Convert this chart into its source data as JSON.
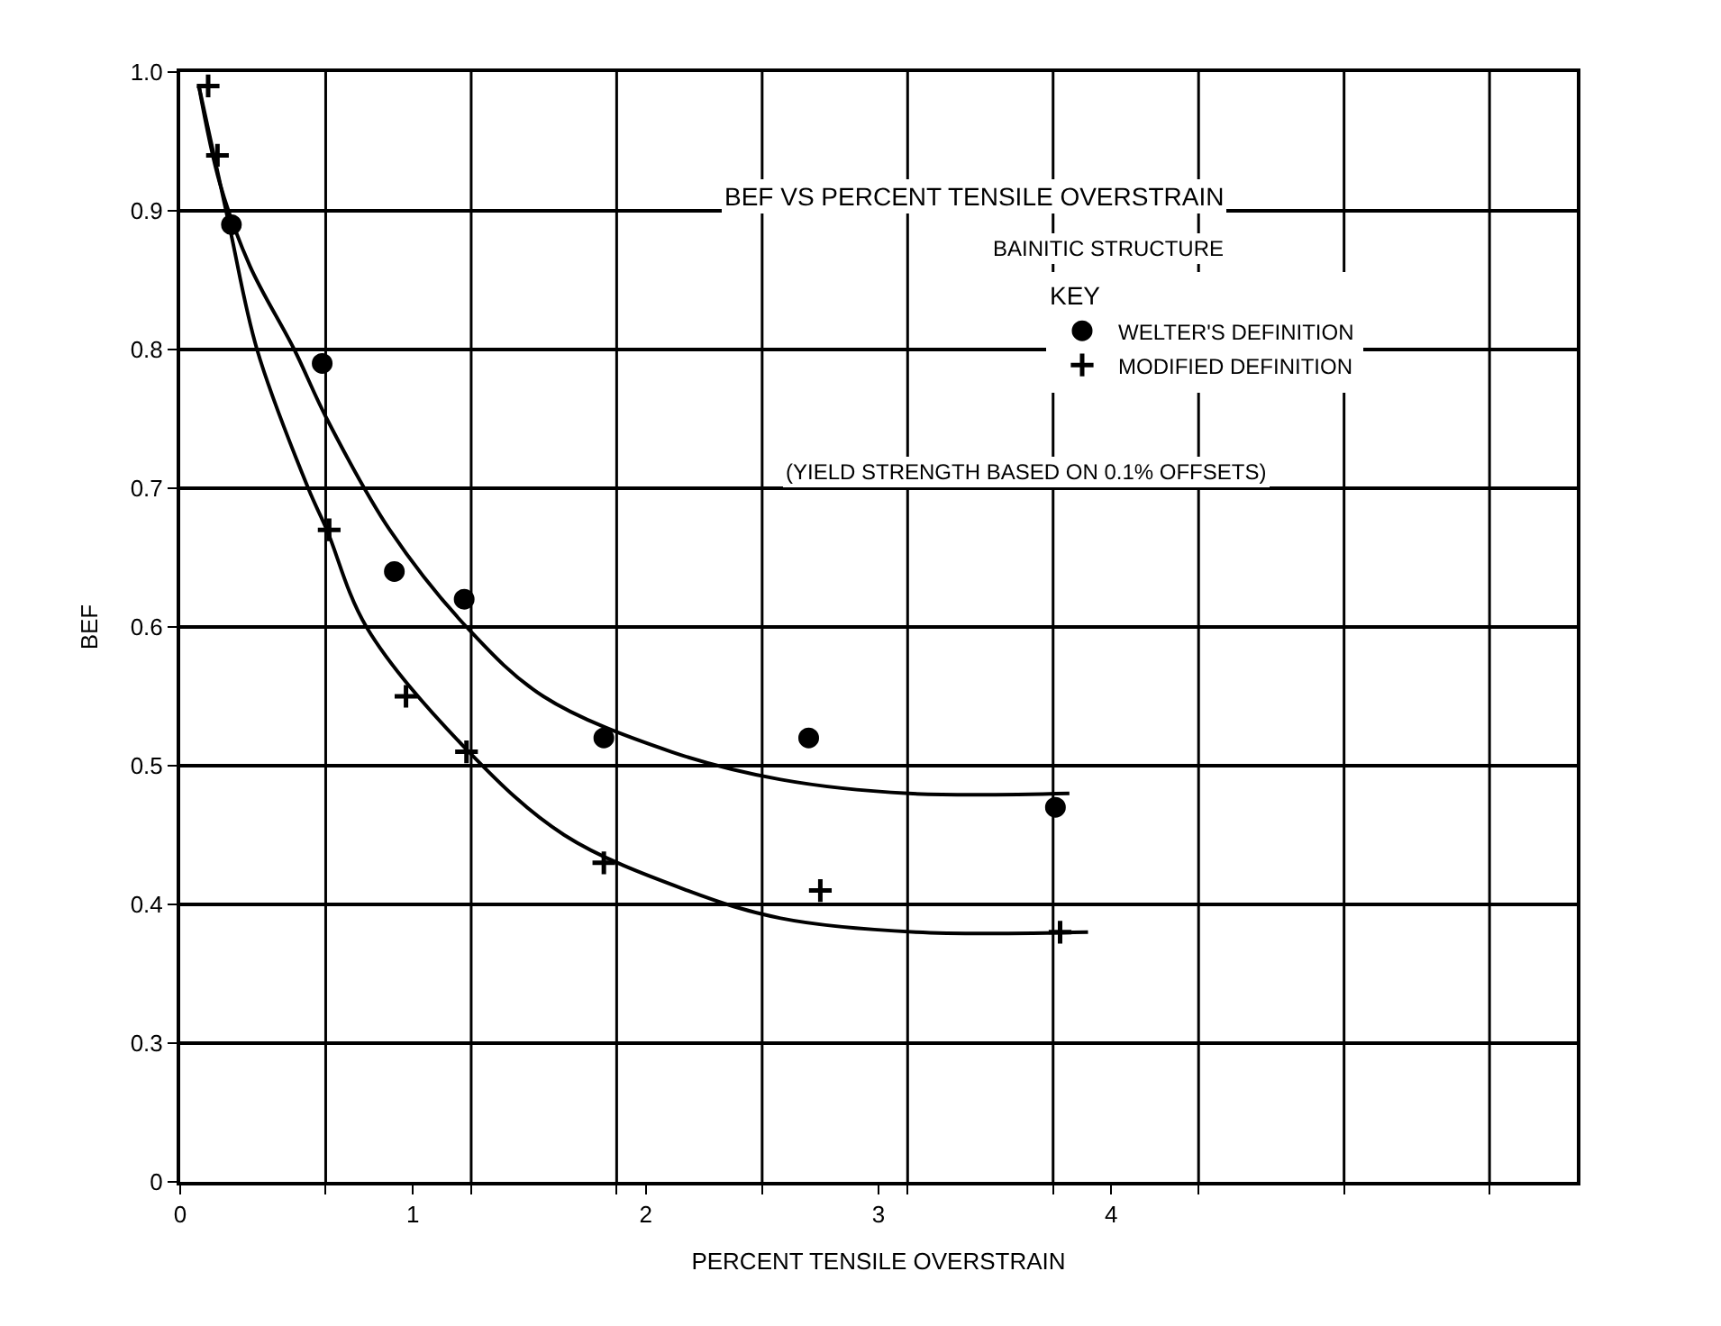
{
  "chart_data": {
    "type": "scatter",
    "title": "BEF VS PERCENT TENSILE OVERSTRAIN",
    "subtitle": "BAINITIC STRUCTURE",
    "xlabel": "PERCENT TENSILE OVERSTRAIN",
    "ylabel": "BEF",
    "legend_title": "KEY",
    "legend": "top right",
    "grid": true,
    "annotations": [
      "(YIELD STRENGTH BASED ON 0.1% OFFSETS)"
    ],
    "xlim": [
      0,
      6.0
    ],
    "ylim": [
      0.2,
      1.0
    ],
    "xticks": [
      0,
      1,
      2,
      3,
      4,
      {
        "value": 0.625,
        "label": null
      },
      {
        "value": 1.25,
        "label": null
      },
      {
        "value": 1.875,
        "label": null
      },
      {
        "value": 2.5,
        "label": null
      },
      {
        "value": 3.125,
        "label": null
      },
      {
        "value": 3.75,
        "label": null
      },
      {
        "value": 4.375,
        "label": null
      },
      {
        "value": 5.0,
        "label": null
      },
      {
        "value": 5.625,
        "label": null
      }
    ],
    "yticks": [
      {
        "value": 0.2,
        "label": "0"
      },
      0.3,
      0.4,
      0.5,
      0.6,
      0.7,
      0.8,
      0.9,
      {
        "value": 1.0,
        "label": "1.0"
      }
    ],
    "series": [
      {
        "name": "WELTER'S DEFINITION",
        "marker": "circle",
        "color": "#000000",
        "x": [
          0.22,
          0.61,
          0.92,
          1.22,
          1.82,
          2.7,
          3.76
        ],
        "values": [
          0.89,
          0.79,
          0.64,
          0.62,
          0.52,
          0.52,
          0.47
        ]
      },
      {
        "name": "MODIFIED DEFINITION",
        "marker": "cross",
        "color": "#000000",
        "x": [
          0.12,
          0.16,
          0.64,
          0.97,
          1.23,
          1.82,
          2.75,
          3.78
        ],
        "values": [
          0.99,
          0.94,
          0.67,
          0.55,
          0.51,
          0.43,
          0.41,
          0.38
        ]
      },
      {
        "type": "line",
        "color": "#000000",
        "line_style": "solid",
        "x": [
          0.08,
          0.17,
          0.3,
          0.49,
          0.63,
          0.9,
          1.23,
          1.56,
          2.11,
          2.58,
          3.13,
          3.82
        ],
        "values": [
          0.99,
          0.92,
          0.86,
          0.8,
          0.75,
          0.67,
          0.6,
          0.55,
          0.51,
          0.49,
          0.48,
          0.48
        ]
      },
      {
        "type": "line",
        "color": "#000000",
        "line_style": "solid",
        "x": [
          0.08,
          0.21,
          0.33,
          0.55,
          0.63,
          0.8,
          1.24,
          1.65,
          2.18,
          2.58,
          3.16,
          3.9
        ],
        "values": [
          0.99,
          0.89,
          0.8,
          0.7,
          0.67,
          0.6,
          0.51,
          0.45,
          0.41,
          0.39,
          0.38,
          0.38
        ]
      }
    ]
  }
}
